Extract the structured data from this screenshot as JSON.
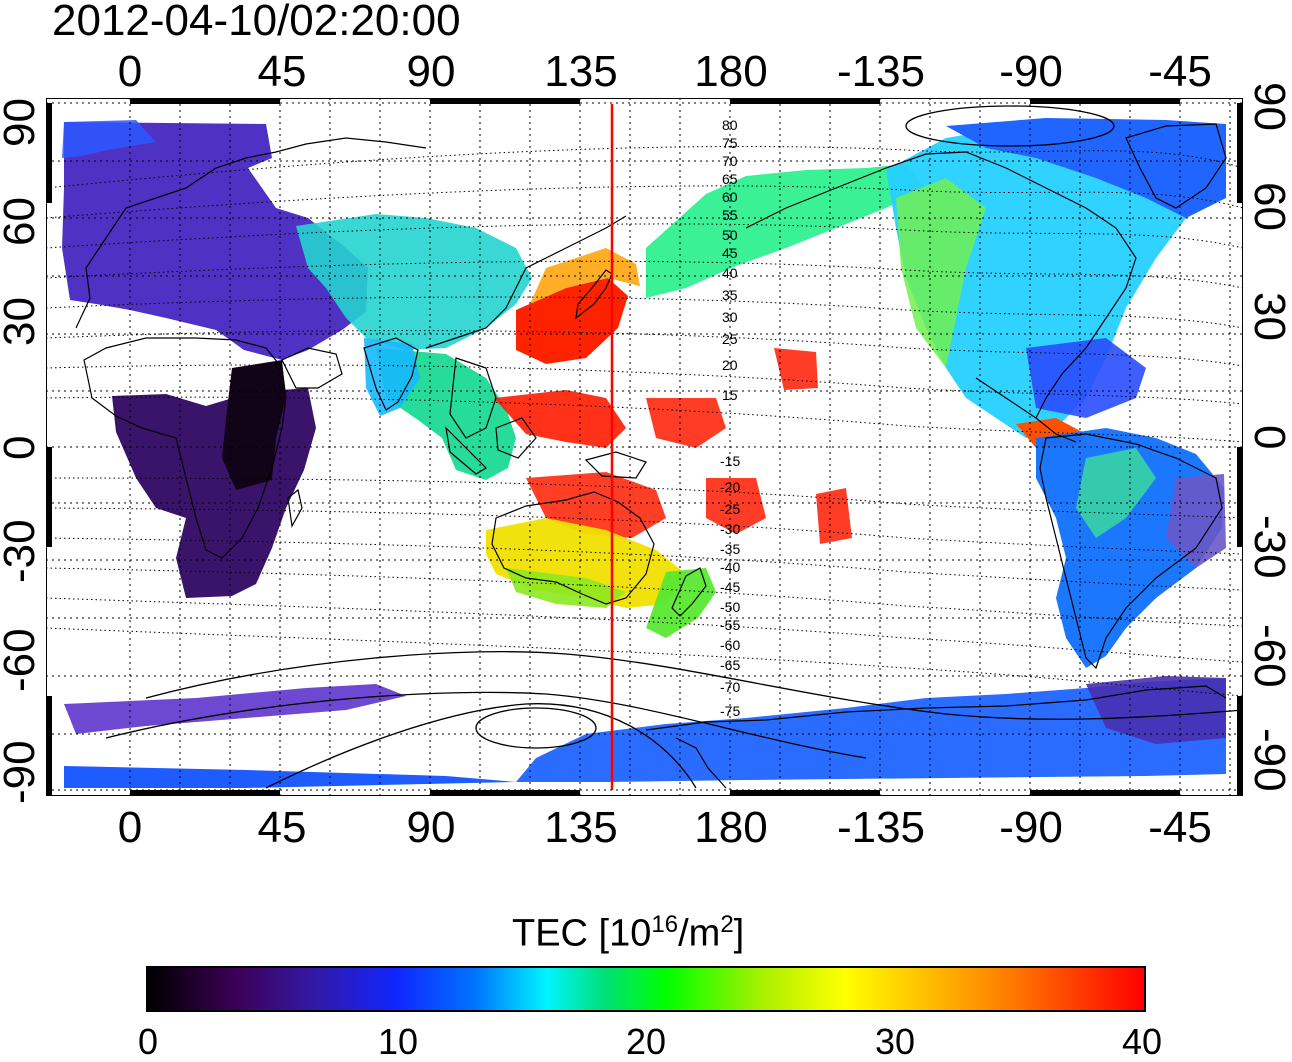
{
  "title": "2012-04-10/02:20:00",
  "x_tick_labels": [
    "0",
    "45",
    "90",
    "135",
    "180",
    "-135",
    "-90",
    "-45"
  ],
  "y_tick_labels": [
    "90",
    "60",
    "30",
    "0",
    "-30",
    "-60",
    "-90"
  ],
  "contour_labels_north": [
    "80",
    "75",
    "70",
    "65",
    "60",
    "55",
    "50",
    "45",
    "40",
    "35",
    "30",
    "25",
    "20",
    "15"
  ],
  "contour_labels_south": [
    "-15",
    "-20",
    "-25",
    "-30",
    "-35",
    "-40",
    "-45",
    "-50",
    "-55",
    "-60",
    "-65",
    "-70",
    "-75"
  ],
  "colorbar": {
    "title_main": "TEC  [10",
    "title_sup1": "16",
    "title_mid": "/m",
    "title_sup2": "2",
    "title_end": "]",
    "tick_labels": [
      "0",
      "10",
      "20",
      "30",
      "40"
    ],
    "range": [
      0,
      40
    ],
    "colors": [
      "#000000",
      "#3d0058",
      "#1026ff",
      "#00f4ff",
      "#00ff00",
      "#ffff00",
      "#ff8800",
      "#ff0000"
    ]
  },
  "map": {
    "projection": "equirectangular",
    "lon_range": [
      -22,
      330
    ],
    "lat_range": [
      -93,
      93
    ],
    "marker_longitude": 142,
    "marker_color": "#ff0000"
  },
  "tec_regions": [
    {
      "name": "europe-siberia",
      "color": "#4626c0"
    },
    {
      "name": "africa",
      "color": "#3a136b"
    },
    {
      "name": "central-africa-dark",
      "color": "#120418"
    },
    {
      "name": "east-asia",
      "color": "#25d4d0"
    },
    {
      "name": "japan",
      "color": "#ff2200"
    },
    {
      "name": "western-pacific",
      "color": "#ff1c00"
    },
    {
      "name": "australia",
      "color": "#f0e000"
    },
    {
      "name": "new-zealand",
      "color": "#58e830"
    },
    {
      "name": "north-pacific",
      "color": "#30f090"
    },
    {
      "name": "north-america",
      "color": "#25d0ff"
    },
    {
      "name": "greenland-arctic",
      "color": "#2065ff"
    },
    {
      "name": "south-america",
      "color": "#1070ff"
    },
    {
      "name": "antarctica",
      "color": "#2a6cff"
    }
  ]
}
